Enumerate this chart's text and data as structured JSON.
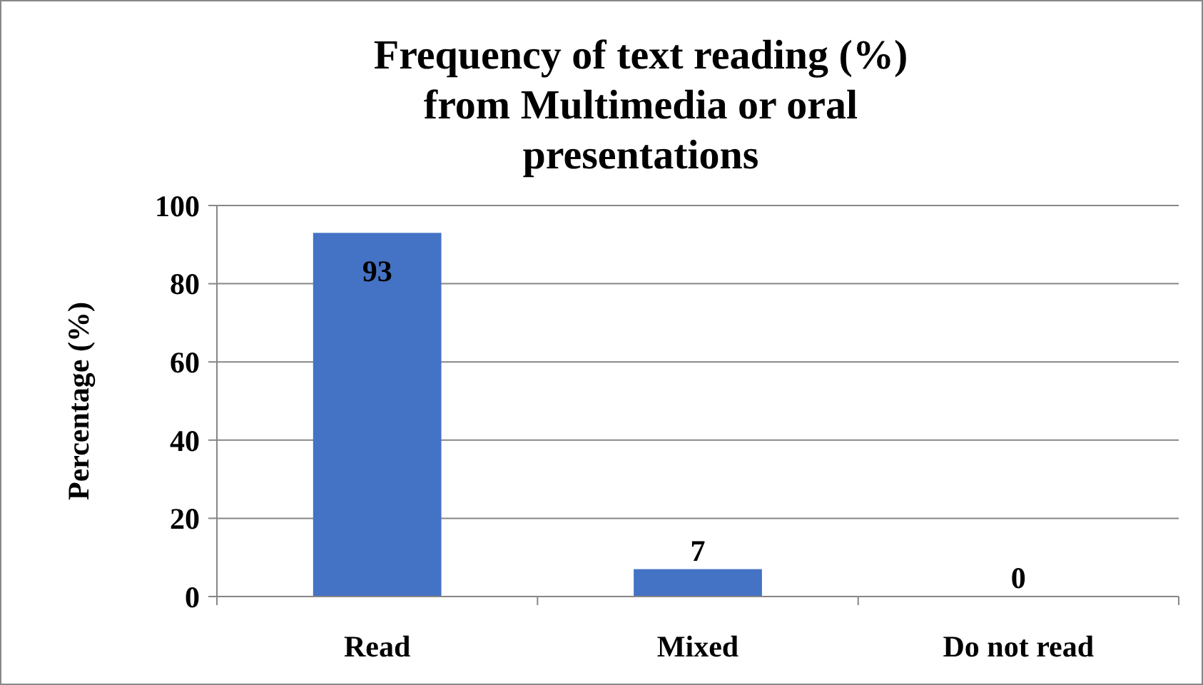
{
  "chart_data": {
    "type": "bar",
    "title": "Frequency of text reading (%)  from Multimedia or oral presentations",
    "ylabel": "Percentage (%)",
    "categories": [
      "Read",
      "Mixed",
      "Do not read"
    ],
    "values": [
      93,
      7,
      0
    ],
    "color": "#4472c4",
    "ylim": [
      0,
      100
    ],
    "yticks": [
      0,
      20,
      40,
      60,
      80,
      100
    ],
    "grid": "y",
    "data_labels": true
  }
}
